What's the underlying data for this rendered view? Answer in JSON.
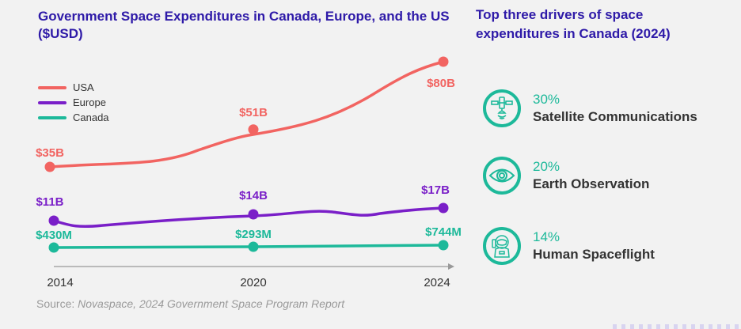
{
  "left_title": "Government Space Expenditures in Canada, Europe, and the US ($USD)",
  "right_title": "Top three drivers of space expenditures in Canada (2024)",
  "source": {
    "prefix": "Source: ",
    "text": "Novaspace, 2024 Government Space Program Report"
  },
  "chart_data": {
    "type": "line",
    "title": "Government Space Expenditures in Canada, Europe, and the US ($USD)",
    "x": [
      "2014",
      "2020",
      "2024"
    ],
    "xlabel": "",
    "ylabel": "",
    "unit": "USD billions",
    "legend_position": "top-left",
    "grid": false,
    "series": [
      {
        "name": "USA",
        "color": "#f26461",
        "values": [
          35,
          51,
          80
        ],
        "labels": [
          "$35B",
          "$51B",
          "$80B"
        ]
      },
      {
        "name": "Europe",
        "color": "#7a1fc8",
        "values": [
          11,
          14,
          17
        ],
        "labels": [
          "$11B",
          "$14B",
          "$17B"
        ]
      },
      {
        "name": "Canada",
        "color": "#1db99a",
        "values": [
          0.43,
          0.293,
          0.744
        ],
        "labels": [
          "$430M",
          "$293M",
          "$744M"
        ]
      }
    ]
  },
  "drivers": [
    {
      "icon": "satellite-icon",
      "percent": "30%",
      "label": "Satellite Communications"
    },
    {
      "icon": "eye-icon",
      "percent": "20%",
      "label": "Earth Observation"
    },
    {
      "icon": "astronaut-icon",
      "percent": "14%",
      "label": "Human Spaceflight"
    }
  ],
  "colors": {
    "title": "#2e1aa8",
    "accent": "#1db99a"
  }
}
